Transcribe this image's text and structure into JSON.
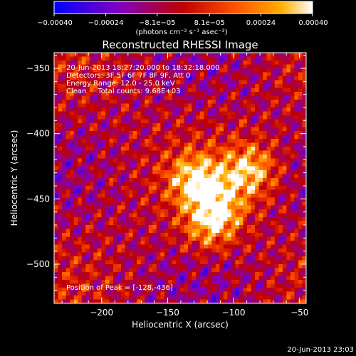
{
  "chart_data": {
    "type": "heatmap",
    "title": "Reconstructed RHESSI Image",
    "xlabel": "Heliocentric X (arcsec)",
    "ylabel": "Heliocentric Y (arcsec)",
    "xlim": [
      -236,
      -45
    ],
    "ylim": [
      -530,
      -338
    ],
    "x_ticks": [
      -200,
      -150,
      -100,
      -50
    ],
    "y_ticks": [
      -350,
      -400,
      -450,
      -500
    ],
    "x_tick_labels": [
      "−200",
      "−150",
      "−100",
      "−50"
    ],
    "y_tick_labels": [
      "−350",
      "−400",
      "−450",
      "−500"
    ],
    "colorbar": {
      "range": [
        -0.0004,
        0.0004
      ],
      "ticks": [
        -0.0004,
        -0.00024,
        -8.1e-05,
        8.1e-05,
        0.00024,
        0.0004
      ],
      "tick_labels": [
        "−0.00040",
        "−0.00024",
        "−8.1e−05",
        "8.1e−05",
        "0.00024",
        "0.00040"
      ],
      "unit_label": "(photons cm⁻² s⁻¹ asec⁻²)",
      "colors": [
        "#0000ff",
        "#8000c0",
        "#c00000",
        "#ff5000",
        "#ffb000",
        "#ffffff"
      ]
    },
    "annotations": [
      "20-Jun-2013 18:27:20.000 to 18:32:18.000",
      "Detectors: 3F 5F 6F 7F 8F 9F, Att 0",
      "Energy Range: 12.0 - 25.0 keV",
      "Clean     Total counts: 9.68E+03"
    ],
    "peak": {
      "x": -128,
      "y": -436,
      "label": "Position of Peak = [-128,-436]"
    },
    "sources": [
      {
        "x": -128,
        "y": -436,
        "value": 0.0004
      },
      {
        "x": -88,
        "y": -428,
        "value": 0.00036
      },
      {
        "x": -118,
        "y": -470,
        "value": 0.0003
      },
      {
        "x": -110,
        "y": -455,
        "value": 0.00025
      }
    ]
  },
  "footer": {
    "timestamp": "20-Jun-2013 23:03"
  }
}
